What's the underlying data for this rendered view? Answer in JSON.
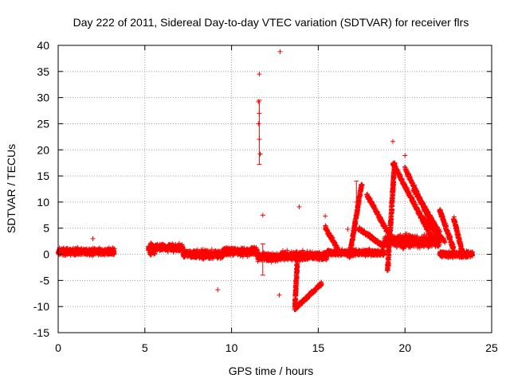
{
  "chart_data": {
    "type": "scatter",
    "title": "Day 222 of 2011, Sidereal Day-to-day VTEC variation (SDTVAR) for receiver flrs",
    "xlabel": "GPS time / hours",
    "ylabel": "SDTVAR / TECUs",
    "xlim": [
      0,
      25
    ],
    "ylim": [
      -15,
      40
    ],
    "x_ticks": [
      0,
      5,
      10,
      15,
      20,
      25
    ],
    "y_ticks": [
      -15,
      -10,
      -5,
      0,
      5,
      10,
      15,
      20,
      25,
      30,
      35,
      40
    ],
    "grid": true,
    "marker": "+",
    "error_bars": true,
    "series": [
      {
        "name": "SDTVAR",
        "color": "#ff0000",
        "dense_segments": [
          {
            "x": [
              0.0,
              3.25
            ],
            "center": 0.5,
            "spread": 0.9
          },
          {
            "x": [
              5.2,
              5.6
            ],
            "center": 1.0,
            "spread": 1.6
          },
          {
            "x": [
              5.6,
              7.2
            ],
            "center": 1.3,
            "spread": 1.0
          },
          {
            "x": [
              7.2,
              9.5
            ],
            "center": 0.0,
            "spread": 1.1
          },
          {
            "x": [
              9.5,
              11.5
            ],
            "center": 0.5,
            "spread": 1.0
          },
          {
            "x": [
              11.5,
              12.8
            ],
            "center": -0.5,
            "spread": 1.2
          },
          {
            "x": [
              12.8,
              15.5
            ],
            "center": -0.3,
            "spread": 1.1
          },
          {
            "x": [
              15.5,
              18.8
            ],
            "center": 0.3,
            "spread": 0.8
          },
          {
            "x": [
              18.8,
              22.0
            ],
            "center": 2.5,
            "spread": 1.6
          },
          {
            "x": [
              22.0,
              23.9
            ],
            "center": 0.0,
            "spread": 0.8
          }
        ],
        "arcs": [
          {
            "x": [
              13.7,
              15.2
            ],
            "y": [
              -10.3,
              -5.5
            ]
          },
          {
            "x": [
              13.65,
              13.8
            ],
            "y": [
              -10.5,
              -0.5
            ]
          },
          {
            "x": [
              15.4,
              16.2
            ],
            "y": [
              5.2,
              0.5
            ]
          },
          {
            "x": [
              16.8,
              17.5
            ],
            "y": [
              -0.5,
              13.5
            ]
          },
          {
            "x": [
              17.3,
              18.8
            ],
            "y": [
              5.0,
              1.5
            ]
          },
          {
            "x": [
              17.8,
              19.2
            ],
            "y": [
              11.5,
              3.0
            ]
          },
          {
            "x": [
              19.0,
              19.4
            ],
            "y": [
              -3.0,
              17.5
            ]
          },
          {
            "x": [
              19.3,
              21.5
            ],
            "y": [
              17.5,
              3.5
            ]
          },
          {
            "x": [
              20.0,
              21.8
            ],
            "y": [
              16.5,
              4.0
            ]
          },
          {
            "x": [
              20.5,
              22.0
            ],
            "y": [
              12.5,
              4.0
            ]
          },
          {
            "x": [
              21.0,
              22.3
            ],
            "y": [
              7.0,
              2.5
            ]
          },
          {
            "x": [
              22.0,
              22.8
            ],
            "y": [
              8.5,
              1.0
            ]
          },
          {
            "x": [
              22.8,
              23.3
            ],
            "y": [
              7.0,
              0.5
            ]
          }
        ],
        "outliers": [
          {
            "x": 2.0,
            "y": 3.0
          },
          {
            "x": 9.2,
            "y": -6.8
          },
          {
            "x": 11.6,
            "y": 34.5
          },
          {
            "x": 11.55,
            "y": 29.2
          },
          {
            "x": 11.6,
            "y": 27.0
          },
          {
            "x": 11.55,
            "y": 25.0
          },
          {
            "x": 11.6,
            "y": 22.0
          },
          {
            "x": 11.65,
            "y": 19.2
          },
          {
            "x": 11.8,
            "y": 7.5
          },
          {
            "x": 12.8,
            "y": 38.8
          },
          {
            "x": 12.75,
            "y": -7.8
          },
          {
            "x": 13.9,
            "y": 9.1
          },
          {
            "x": 15.4,
            "y": 7.3
          },
          {
            "x": 16.7,
            "y": 4.8
          },
          {
            "x": 19.3,
            "y": 21.6
          },
          {
            "x": 20.0,
            "y": 18.9
          }
        ],
        "error_bar_items": [
          {
            "x": 11.6,
            "low": 17.2,
            "high": 29.5
          },
          {
            "x": 11.8,
            "low": -4.0,
            "high": 2.0
          },
          {
            "x": 17.2,
            "low": 10.0,
            "high": 14.0
          }
        ]
      }
    ]
  }
}
